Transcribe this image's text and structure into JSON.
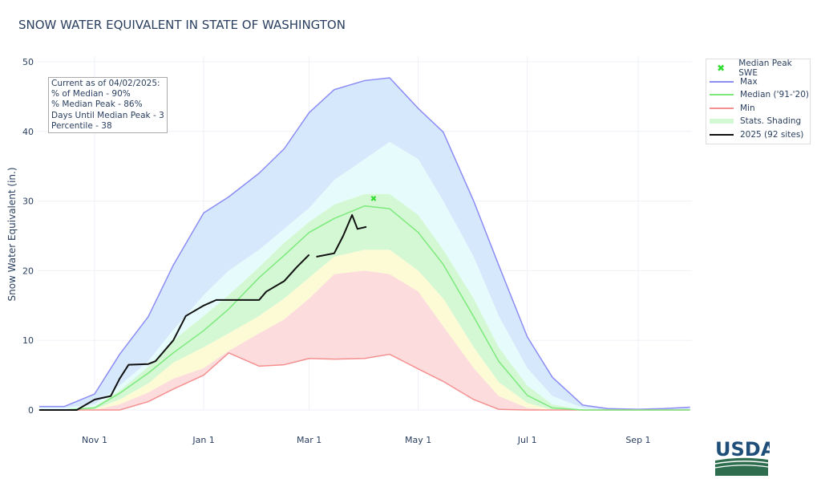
{
  "title": "SNOW WATER EQUIVALENT IN STATE OF WASHINGTON",
  "annotation": [
    "Current as of 04/02/2025:",
    "% of Median - 90%",
    "% Median Peak - 86%",
    "Days Until Median Peak - 3",
    "Percentile - 38"
  ],
  "logo_text": "USDA",
  "chart_data": {
    "type": "area",
    "title": "SNOW WATER EQUIVALENT IN STATE OF WASHINGTON",
    "ylabel": "Snow Water Equivalent (in.)",
    "xlabel": "",
    "xlim": [
      "2024-10-01",
      "2025-09-30"
    ],
    "ylim": [
      0,
      50
    ],
    "yticks": [
      0,
      10,
      20,
      30,
      40,
      50
    ],
    "xticks": [
      {
        "date": "2024-11-01",
        "label": "Nov 1"
      },
      {
        "date": "2025-01-01",
        "label": "Jan 1"
      },
      {
        "date": "2025-03-01",
        "label": "Mar 1"
      },
      {
        "date": "2025-05-01",
        "label": "May 1"
      },
      {
        "date": "2025-07-01",
        "label": "Jul 1"
      },
      {
        "date": "2025-09-01",
        "label": "Sep 1"
      }
    ],
    "grid": true,
    "legend_placement": "right",
    "legend": [
      "Median Peak SWE",
      "Max",
      "Median ('91-'20)",
      "Min",
      "Stats. Shading",
      "2025 (92 sites)"
    ],
    "colors": {
      "max": "#8c8cf5",
      "median": "#7cea7c",
      "min": "#f59090",
      "current": "#111111",
      "peak": "#33dd33",
      "band_max_p90": "#d6e8fb",
      "band_p90_p70": "#e6fcfc",
      "band_p70_p30": "#d4f8d4",
      "band_p30_p10": "#fdfbd6",
      "band_p10_min": "#fcdcdc"
    },
    "dates": [
      "2024-10-01",
      "2024-10-15",
      "2024-11-01",
      "2024-11-15",
      "2024-12-01",
      "2024-12-15",
      "2025-01-01",
      "2025-01-15",
      "2025-02-01",
      "2025-02-15",
      "2025-03-01",
      "2025-03-15",
      "2025-04-01",
      "2025-04-15",
      "2025-05-01",
      "2025-05-15",
      "2025-06-01",
      "2025-06-15",
      "2025-07-01",
      "2025-07-15",
      "2025-08-01",
      "2025-08-15",
      "2025-09-01",
      "2025-09-15",
      "2025-09-30"
    ],
    "series": [
      {
        "name": "Max",
        "key": "max",
        "values": [
          0.5,
          0.5,
          2.3,
          8,
          13.4,
          20.8,
          28.3,
          30.6,
          34,
          37.5,
          42.7,
          46,
          47.3,
          47.7,
          43.3,
          39.9,
          30,
          20.8,
          10.5,
          4.7,
          0.7,
          0.2,
          0.1,
          0.2,
          0.4
        ]
      },
      {
        "key": "p90",
        "values": [
          0.3,
          0.3,
          0.8,
          3.5,
          7,
          11.5,
          16.5,
          20,
          23,
          26,
          29,
          33,
          36,
          38.5,
          36,
          30,
          22,
          13.5,
          6,
          2,
          0.3,
          0,
          0,
          0,
          0
        ]
      },
      {
        "key": "p70",
        "values": [
          0.1,
          0.1,
          0.5,
          2.8,
          6.2,
          10,
          13.5,
          16.5,
          20.5,
          24,
          27,
          29.5,
          31,
          31,
          28,
          23,
          16,
          9,
          3.5,
          0.8,
          0,
          0,
          0,
          0,
          0
        ]
      },
      {
        "name": "Median ('91-'20)",
        "key": "median",
        "values": [
          0,
          0,
          0.3,
          2.4,
          5.3,
          8.2,
          11.4,
          14.5,
          19,
          22.2,
          25.5,
          27.5,
          29.3,
          28.9,
          25.5,
          20.9,
          13.4,
          7,
          2.1,
          0.3,
          0,
          0,
          0,
          0,
          0
        ]
      },
      {
        "key": "p30",
        "values": [
          0,
          0,
          0.1,
          1.5,
          3.8,
          6.8,
          9,
          11,
          13.5,
          16,
          19,
          22,
          23,
          23,
          20,
          16,
          9,
          4,
          1,
          0,
          0,
          0,
          0,
          0,
          0
        ]
      },
      {
        "key": "p10",
        "values": [
          0,
          0,
          0,
          0.8,
          2.5,
          4.5,
          6,
          8.5,
          11,
          13,
          16,
          19.5,
          20,
          19.5,
          17,
          12,
          6,
          2,
          0.3,
          0,
          0,
          0,
          0,
          0,
          0
        ]
      },
      {
        "name": "Min",
        "key": "min",
        "values": [
          0,
          0,
          0,
          0,
          1.2,
          3,
          5,
          8.2,
          6.3,
          6.5,
          7.4,
          7.3,
          7.4,
          8,
          5.9,
          4.1,
          1.5,
          0.1,
          0,
          0,
          0,
          0,
          0,
          0,
          0
        ]
      }
    ],
    "current": {
      "name": "2025 (92 sites)",
      "dates": [
        "2024-10-01",
        "2024-10-22",
        "2024-11-01",
        "2024-11-10",
        "2024-11-15",
        "2024-11-20",
        "2024-12-01",
        "2024-12-05",
        "2024-12-15",
        "2024-12-22",
        "2025-01-01",
        "2025-01-08",
        "2025-02-01",
        "2025-02-05",
        "2025-02-15",
        "2025-02-22",
        "2025-03-01",
        "2025-03-03",
        "2025-03-05",
        "2025-03-15",
        "2025-03-20",
        "2025-03-25",
        "2025-03-28",
        "2025-04-02"
      ],
      "values": [
        0,
        0,
        1.5,
        2,
        4.5,
        6.5,
        6.6,
        7,
        10,
        13.5,
        15,
        15.8,
        15.8,
        17,
        18.5,
        20.5,
        22.3,
        null,
        22,
        22.5,
        25,
        28,
        26,
        26.3
      ]
    },
    "median_peak": {
      "name": "Median Peak SWE",
      "date": "2025-04-06",
      "value": 30.4
    }
  }
}
